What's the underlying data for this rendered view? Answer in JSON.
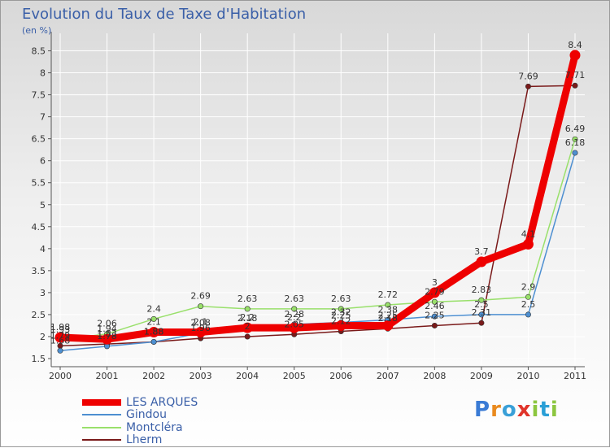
{
  "header": {
    "title": "Evolution du Taux de Taxe d'Habitation",
    "subtitle": "(en %)"
  },
  "logo": {
    "text": "Proxiti"
  },
  "colors": {
    "les_arques": "#ee0000",
    "gindou": "#4d8fd1",
    "montclera": "#99e06b",
    "lherm": "#7a1a1a",
    "title": "#3a5fa8",
    "grid": "#ffffff"
  },
  "chart_data": {
    "type": "line",
    "title": "Evolution du Taux de Taxe d'Habitation",
    "ylabel": "(en %)",
    "xlabel": "",
    "ylim": [
      1.5,
      8.75
    ],
    "grid": true,
    "legend_position": "bottom-left",
    "x": [
      "2000",
      "2001",
      "2002",
      "2003",
      "2004",
      "2005",
      "2006",
      "2007",
      "2008",
      "2009",
      "2010",
      "2011"
    ],
    "y_ticks": [
      "1.5",
      "2",
      "2.5",
      "3",
      "3.5",
      "4",
      "4.5",
      "5",
      "5.5",
      "6",
      "6.5",
      "7",
      "7.5",
      "8",
      "8.5"
    ],
    "series": [
      {
        "name": "LES ARQUES",
        "color": "#ee0000",
        "values": [
          1.98,
          1.94,
          2.1,
          2.1,
          2.2,
          2.2,
          2.25,
          2.25,
          3.0,
          3.7,
          4.1,
          8.4
        ],
        "labels": [
          "1.98",
          "1.94",
          "2.1",
          "2.1",
          "2.2",
          "2.2",
          "2.25",
          "2.25",
          "3",
          "3.7",
          "4.1",
          "8.4"
        ]
      },
      {
        "name": "Gindou",
        "color": "#4d8fd1",
        "values": [
          1.68,
          1.78,
          1.88,
          2.08,
          2.18,
          2.28,
          2.32,
          2.38,
          2.46,
          2.5,
          2.5,
          6.18
        ],
        "labels": [
          "1.68",
          "1.78",
          "1.88",
          "2.08",
          "2.18",
          "2.28",
          "2.32",
          "2.38",
          "2.46",
          "2.5",
          "2.5",
          "6.18"
        ]
      },
      {
        "name": "Montcléra",
        "color": "#99e06b",
        "values": [
          1.93,
          2.06,
          2.4,
          2.69,
          2.63,
          2.63,
          2.63,
          2.72,
          2.79,
          2.83,
          2.9,
          6.49
        ],
        "labels": [
          "1.93",
          "2.06",
          "2.4",
          "2.69",
          "2.63",
          "2.63",
          "2.63",
          "2.72",
          "2.79",
          "2.83",
          "2.9",
          "6.49"
        ]
      },
      {
        "name": "Lherm",
        "color": "#7a1a1a",
        "values": [
          1.79,
          1.83,
          1.88,
          1.96,
          2.0,
          2.05,
          2.12,
          2.18,
          2.25,
          2.31,
          7.69,
          7.71
        ],
        "labels": [
          "1.79",
          "1.83",
          "1.88",
          "1.96",
          "2",
          "2.05",
          "2.12",
          "2.18",
          "2.25",
          "2.31",
          "7.69",
          "7.71"
        ]
      }
    ]
  }
}
